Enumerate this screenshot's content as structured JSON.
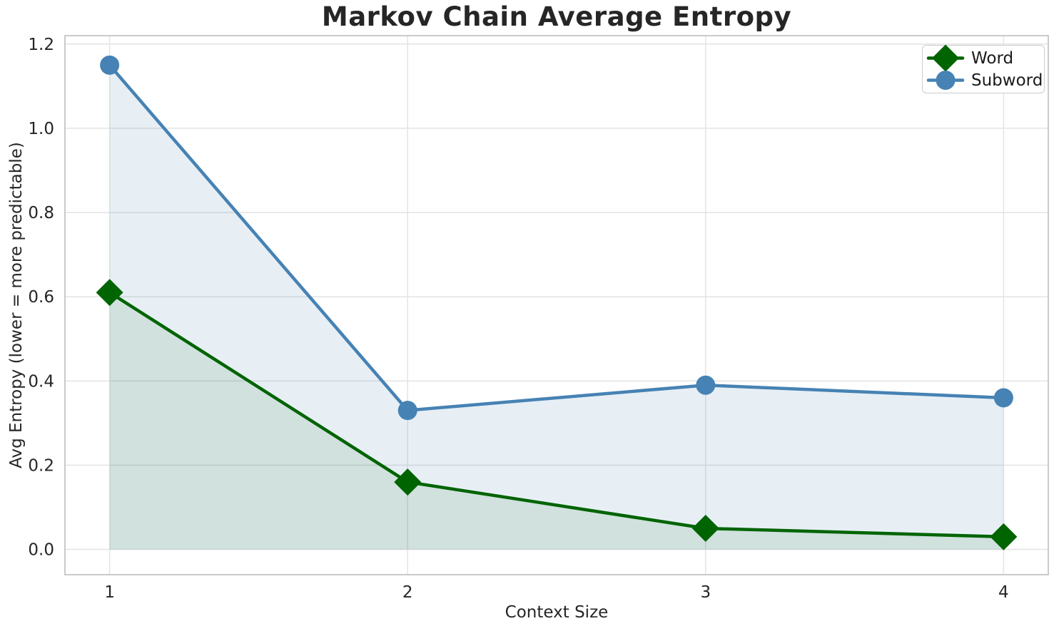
{
  "chart_data": {
    "type": "line",
    "title": "Markov Chain Average Entropy",
    "xlabel": "Context Size",
    "ylabel": "Avg Entropy (lower = more predictable)",
    "x": [
      1,
      2,
      3,
      4
    ],
    "series": [
      {
        "name": "Word",
        "values": [
          0.61,
          0.16,
          0.05,
          0.03
        ],
        "color": "#006400",
        "marker": "diamond",
        "fill_alpha": 0.1
      },
      {
        "name": "Subword",
        "values": [
          1.15,
          0.33,
          0.39,
          0.36
        ],
        "color": "#4682b4",
        "marker": "circle",
        "fill_alpha": 0.13
      }
    ],
    "fill_baseline": 0.0,
    "xlim": [
      0.85,
      4.15
    ],
    "ylim": [
      -0.06,
      1.22
    ],
    "xticks": [
      "1",
      "2",
      "3",
      "4"
    ],
    "xtick_values": [
      1,
      2,
      3,
      4
    ],
    "yticks": [
      "0.0",
      "0.2",
      "0.4",
      "0.6",
      "0.8",
      "1.0",
      "1.2"
    ],
    "ytick_values": [
      0,
      0.2,
      0.4,
      0.6,
      0.8,
      1.0,
      1.2
    ],
    "grid": true,
    "legend_position": "upper right",
    "colors": {
      "grid": "#e5e5e5",
      "spine": "#c4c4c4",
      "text": "#262626",
      "background": "#ffffff"
    }
  }
}
